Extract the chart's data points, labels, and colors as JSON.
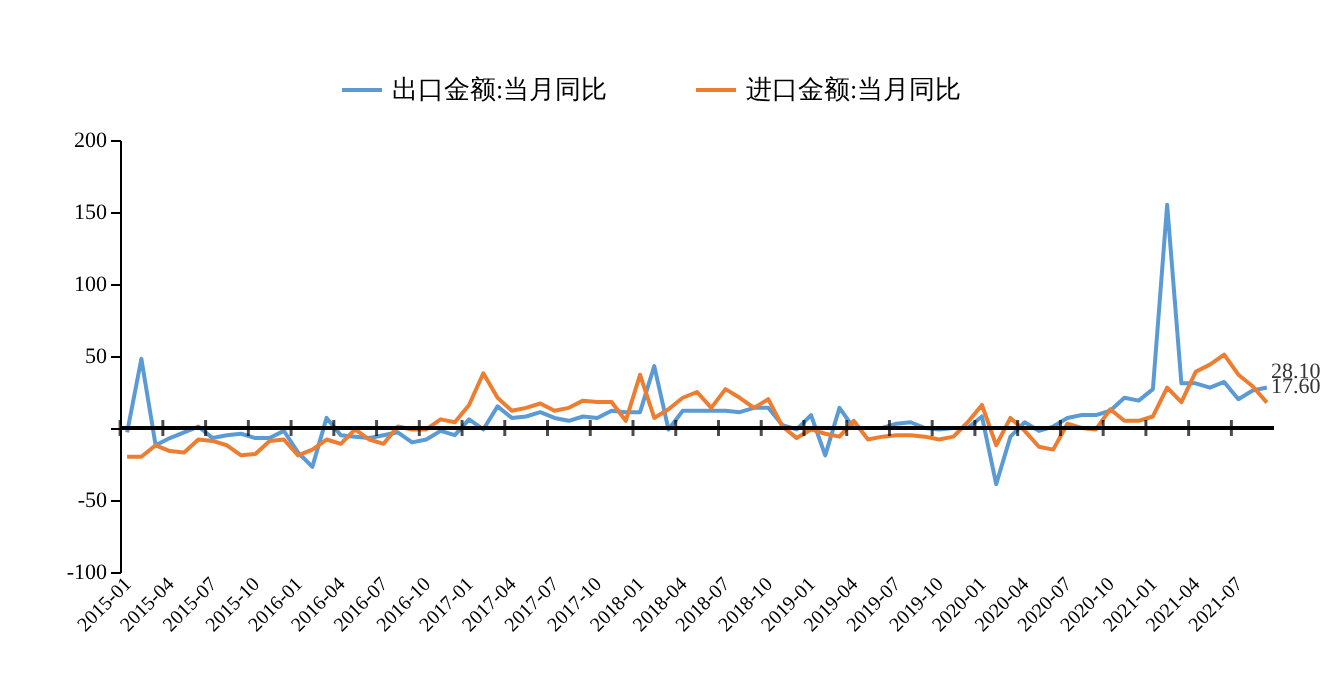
{
  "chart_data": {
    "type": "line",
    "categories": [
      "2015-01",
      null,
      null,
      "2015-04",
      null,
      null,
      "2015-07",
      null,
      null,
      "2015-10",
      null,
      null,
      "2016-01",
      null,
      null,
      "2016-04",
      null,
      null,
      "2016-07",
      null,
      null,
      "2016-10",
      null,
      null,
      "2017-01",
      null,
      null,
      "2017-04",
      null,
      null,
      "2017-07",
      null,
      null,
      "2017-10",
      null,
      null,
      "2018-01",
      null,
      null,
      "2018-04",
      null,
      null,
      "2018-07",
      null,
      null,
      "2018-10",
      null,
      null,
      "2019-01",
      null,
      null,
      "2019-04",
      null,
      null,
      "2019-07",
      null,
      null,
      "2019-10",
      null,
      null,
      "2020-01",
      null,
      null,
      "2020-04",
      null,
      null,
      "2020-07",
      null,
      null,
      "2020-10",
      null,
      null,
      "2021-01",
      null,
      null,
      "2021-04",
      null,
      null,
      "2021-07",
      null,
      null
    ],
    "series": [
      {
        "name": "出口金额:当月同比",
        "color": "#5b9bd5",
        "values": [
          -3,
          48,
          -12,
          -7,
          -3,
          1,
          -7,
          -5,
          -4,
          -7,
          -7,
          -2,
          -17,
          -27,
          7,
          -5,
          -6,
          -7,
          -5,
          -3,
          -10,
          -8,
          -2,
          -5,
          6,
          -1,
          15,
          7,
          8,
          11,
          7,
          5,
          8,
          7,
          12,
          11,
          11,
          43,
          -1,
          12,
          12,
          12,
          12,
          11,
          14,
          14,
          2,
          -1,
          9,
          -19,
          14,
          0,
          0,
          0,
          3,
          4,
          0,
          -1,
          0,
          0,
          8,
          -39,
          -6,
          4,
          -2,
          1,
          7,
          9,
          9,
          12,
          21,
          19,
          27,
          155,
          31,
          31,
          28,
          32,
          20,
          26,
          28.1
        ],
        "value_labels": [
          null,
          null,
          null,
          null,
          null,
          null,
          null,
          null,
          null,
          null,
          null,
          null,
          null,
          null,
          null,
          null,
          null,
          null,
          null,
          null,
          null,
          null,
          null,
          null,
          null,
          null,
          null,
          null,
          null,
          null,
          null,
          null,
          null,
          null,
          null,
          null,
          null,
          null,
          null,
          null,
          null,
          null,
          null,
          null,
          null,
          null,
          null,
          null,
          null,
          null,
          null,
          null,
          null,
          null,
          null,
          null,
          null,
          null,
          null,
          null,
          null,
          null,
          null,
          null,
          null,
          null,
          null,
          null,
          null,
          null,
          null,
          null,
          null,
          null,
          null,
          null,
          null,
          null,
          null,
          null,
          "28.10"
        ]
      },
      {
        "name": "进口金额:当月同比",
        "color": "#ed7d31",
        "values": [
          -20,
          -20,
          -12,
          -16,
          -17,
          -8,
          -9,
          -12,
          -19,
          -18,
          -9,
          -8,
          -19,
          -15,
          -8,
          -11,
          -1,
          -8,
          -11,
          1,
          -1,
          -1,
          6,
          4,
          16,
          38,
          21,
          12,
          14,
          17,
          12,
          14,
          19,
          18,
          18,
          5,
          37,
          7,
          13,
          21,
          25,
          14,
          27,
          21,
          14,
          20,
          1,
          -7,
          -1,
          -4,
          -6,
          5,
          -8,
          -6,
          -5,
          -5,
          -6,
          -8,
          -6,
          4,
          16,
          -12,
          7,
          -2,
          -13,
          -15,
          3,
          0,
          -1,
          13,
          5,
          5,
          8,
          28,
          18,
          39,
          44,
          51,
          37,
          29,
          17.6
        ],
        "value_labels": [
          null,
          null,
          null,
          null,
          null,
          null,
          null,
          null,
          null,
          null,
          null,
          null,
          null,
          null,
          null,
          null,
          null,
          null,
          null,
          null,
          null,
          null,
          null,
          null,
          null,
          null,
          null,
          null,
          null,
          null,
          null,
          null,
          null,
          null,
          null,
          null,
          null,
          null,
          null,
          null,
          null,
          null,
          null,
          null,
          null,
          null,
          null,
          null,
          null,
          null,
          null,
          null,
          null,
          null,
          null,
          null,
          null,
          null,
          null,
          null,
          null,
          null,
          null,
          null,
          null,
          null,
          null,
          null,
          null,
          null,
          null,
          null,
          null,
          null,
          null,
          null,
          null,
          null,
          null,
          null,
          "17.60"
        ]
      }
    ],
    "ylim": [
      -100,
      200
    ],
    "yticks": [
      -100,
      -50,
      {
        "value": 0,
        "label": null
      },
      50,
      100,
      150,
      200
    ],
    "ref_lines": [
      {
        "axis": "y",
        "value": 0,
        "color": "#000000"
      }
    ],
    "grid": false,
    "legend": "top",
    "line_style": "solid",
    "marker": "none"
  }
}
